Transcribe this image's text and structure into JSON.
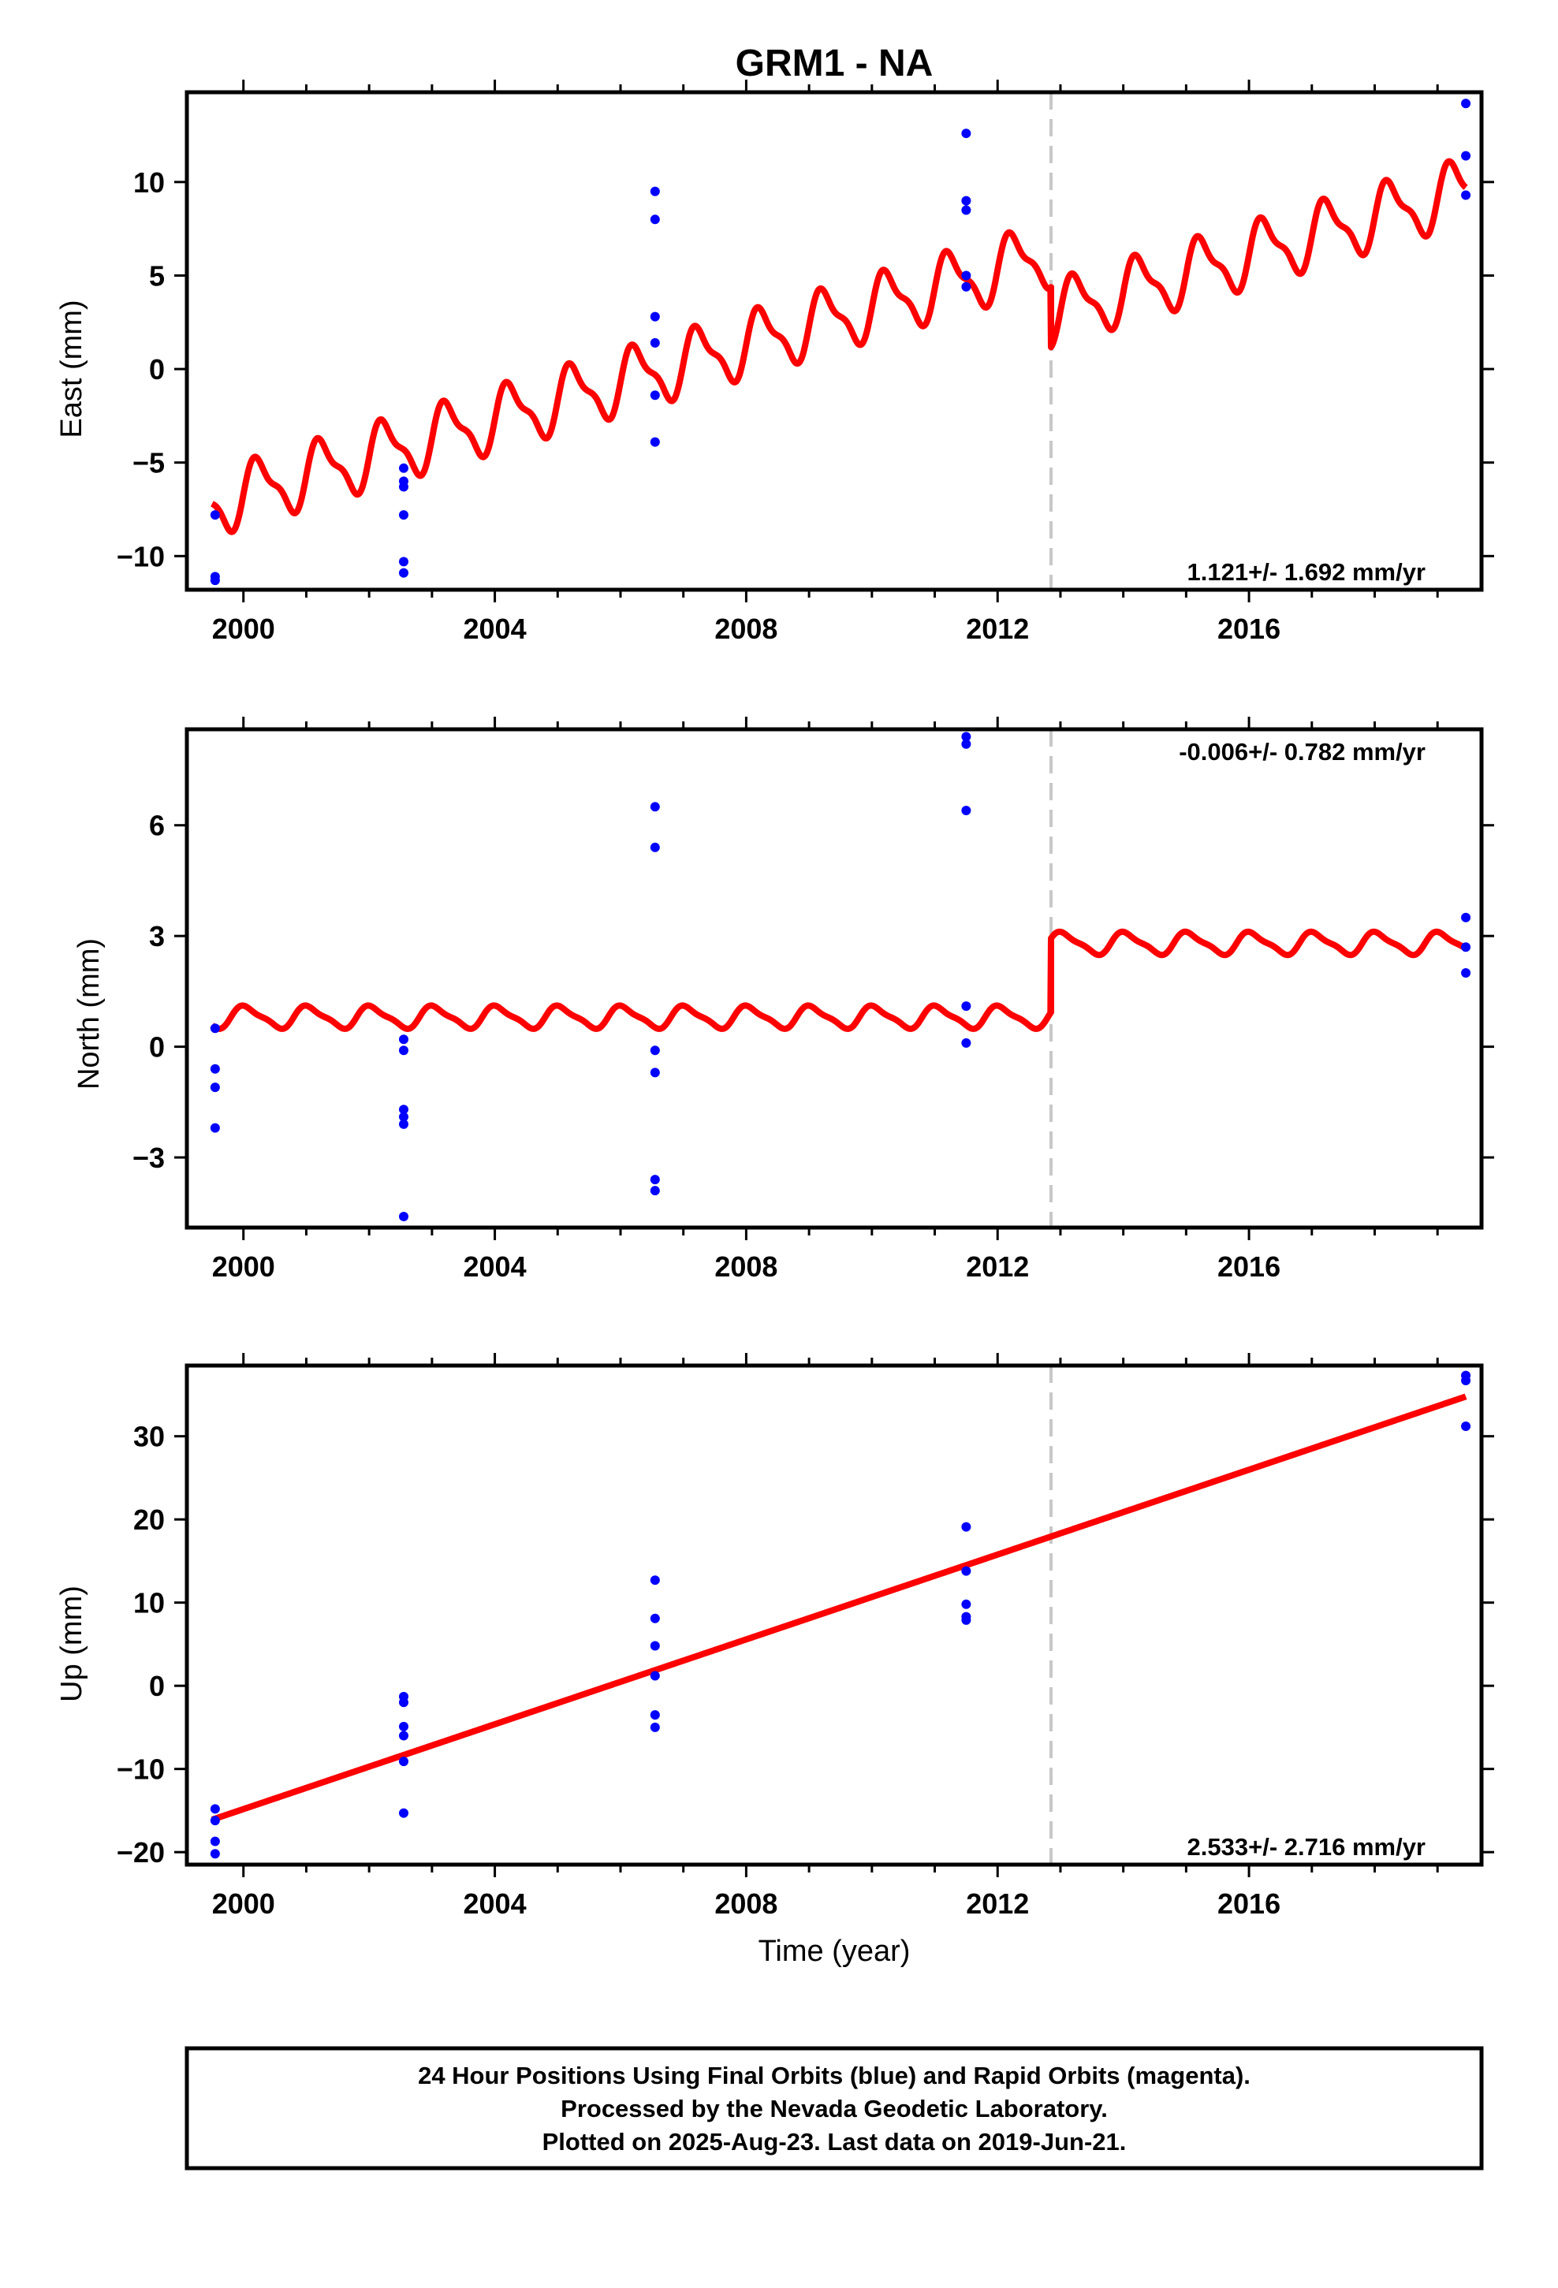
{
  "title": "GRM1 - NA",
  "footer": {
    "lines": [
      "24 Hour Positions Using Final Orbits (blue) and Rapid Orbits (magenta).",
      "Processed by the Nevada Geodetic Laboratory.",
      "Plotted on 2025-Aug-23. Last data on 2019-Jun-21."
    ]
  },
  "colors": {
    "data_points": "#0000ff",
    "model_line": "#ff0000",
    "step_marker": "#c8c8c8",
    "frame": "#000000"
  },
  "chart_data": [
    {
      "type": "scatter",
      "name": "east",
      "ylabel": "East (mm)",
      "xlabel": "",
      "xlim": [
        1999.1,
        2019.7
      ],
      "ylim": [
        -11.8,
        14.8
      ],
      "xticks": [
        2000,
        2004,
        2008,
        2012,
        2016
      ],
      "xtick_labels": [
        "2000",
        "2004",
        "2008",
        "2012",
        "2016"
      ],
      "yticks": [
        -10,
        -5,
        0,
        5,
        10
      ],
      "ytick_labels": [
        "−10",
        "−5",
        "0",
        "5",
        "10"
      ],
      "grid": false,
      "rate_label": "1.121+/- 1.692 mm/yr",
      "rate_position": "bottom-right",
      "step_epoch": 2012.85,
      "points": [
        [
          1999.55,
          -7.8
        ],
        [
          1999.55,
          -11.1
        ],
        [
          1999.55,
          -11.3
        ],
        [
          2002.55,
          -5.3
        ],
        [
          2002.55,
          -6.0
        ],
        [
          2002.55,
          -6.3
        ],
        [
          2002.55,
          -7.8
        ],
        [
          2002.55,
          -10.3
        ],
        [
          2002.55,
          -10.9
        ],
        [
          2006.55,
          9.5
        ],
        [
          2006.55,
          8.0
        ],
        [
          2006.55,
          2.8
        ],
        [
          2006.55,
          1.4
        ],
        [
          2006.55,
          -1.4
        ],
        [
          2006.55,
          -3.9
        ],
        [
          2011.5,
          12.6
        ],
        [
          2011.5,
          9.0
        ],
        [
          2011.5,
          8.5
        ],
        [
          2011.5,
          5.0
        ],
        [
          2011.5,
          4.4
        ],
        [
          2019.45,
          14.2
        ],
        [
          2019.45,
          11.4
        ],
        [
          2019.45,
          9.3
        ]
      ],
      "model": {
        "t0": 1999.5,
        "t1": 2019.45,
        "offset_before": -7.2,
        "slope": 1.0,
        "step": -3.2,
        "annual_amp": 1.55,
        "annual_phase": 0.0,
        "semiannual_amp": 0.55,
        "semiannual_phase": 0.5
      }
    },
    {
      "type": "scatter",
      "name": "north",
      "ylabel": "North (mm)",
      "xlabel": "",
      "xlim": [
        1999.1,
        2019.7
      ],
      "ylim": [
        -4.9,
        8.6
      ],
      "xticks": [
        2000,
        2004,
        2008,
        2012,
        2016
      ],
      "xtick_labels": [
        "2000",
        "2004",
        "2008",
        "2012",
        "2016"
      ],
      "yticks": [
        -3,
        0,
        3,
        6
      ],
      "ytick_labels": [
        "−3",
        "0",
        "3",
        "6"
      ],
      "grid": false,
      "rate_label": "-0.006+/- 0.782 mm/yr",
      "rate_position": "top-right",
      "step_epoch": 2012.85,
      "points": [
        [
          1999.55,
          0.5
        ],
        [
          1999.55,
          -0.6
        ],
        [
          1999.55,
          -1.1
        ],
        [
          1999.55,
          -2.2
        ],
        [
          2002.55,
          0.2
        ],
        [
          2002.55,
          -0.1
        ],
        [
          2002.55,
          -1.7
        ],
        [
          2002.55,
          -1.9
        ],
        [
          2002.55,
          -2.1
        ],
        [
          2002.55,
          -4.6
        ],
        [
          2006.55,
          6.5
        ],
        [
          2006.55,
          5.4
        ],
        [
          2006.55,
          -0.1
        ],
        [
          2006.55,
          -0.7
        ],
        [
          2006.55,
          -3.6
        ],
        [
          2006.55,
          -3.9
        ],
        [
          2011.5,
          8.4
        ],
        [
          2011.5,
          8.2
        ],
        [
          2011.5,
          6.4
        ],
        [
          2011.5,
          1.1
        ],
        [
          2011.5,
          0.1
        ],
        [
          2019.45,
          3.5
        ],
        [
          2019.45,
          2.7
        ],
        [
          2019.45,
          2.0
        ]
      ],
      "model": {
        "t0": 1999.5,
        "t1": 2019.45,
        "offset_before": 0.8,
        "slope": 0.0,
        "step": 2.0,
        "annual_amp": 0.28,
        "annual_phase": 0.2,
        "semiannual_amp": 0.08,
        "semiannual_phase": 0.7
      }
    },
    {
      "type": "scatter",
      "name": "up",
      "ylabel": "Up (mm)",
      "xlabel": "Time (year)",
      "xlim": [
        1999.1,
        2019.7
      ],
      "ylim": [
        -21.5,
        38.5
      ],
      "xticks": [
        2000,
        2004,
        2008,
        2012,
        2016
      ],
      "xtick_labels": [
        "2000",
        "2004",
        "2008",
        "2012",
        "2016"
      ],
      "yticks": [
        -20,
        -10,
        0,
        10,
        20,
        30
      ],
      "ytick_labels": [
        "−20",
        "−10",
        "0",
        "10",
        "20",
        "30"
      ],
      "grid": false,
      "rate_label": "2.533+/- 2.716 mm/yr",
      "rate_position": "bottom-right",
      "step_epoch": 2012.85,
      "points": [
        [
          1999.55,
          -14.8
        ],
        [
          1999.55,
          -16.2
        ],
        [
          1999.55,
          -18.7
        ],
        [
          1999.55,
          -20.2
        ],
        [
          2002.55,
          -1.3
        ],
        [
          2002.55,
          -2.0
        ],
        [
          2002.55,
          -4.9
        ],
        [
          2002.55,
          -6.0
        ],
        [
          2002.55,
          -9.1
        ],
        [
          2002.55,
          -15.3
        ],
        [
          2006.55,
          12.7
        ],
        [
          2006.55,
          8.1
        ],
        [
          2006.55,
          4.8
        ],
        [
          2006.55,
          1.2
        ],
        [
          2006.55,
          -3.5
        ],
        [
          2006.55,
          -5.0
        ],
        [
          2011.5,
          19.1
        ],
        [
          2011.5,
          13.8
        ],
        [
          2011.5,
          9.8
        ],
        [
          2011.5,
          8.3
        ],
        [
          2011.5,
          7.9
        ],
        [
          2019.45,
          37.3
        ],
        [
          2019.45,
          36.7
        ],
        [
          2019.45,
          31.2
        ]
      ],
      "model": {
        "t0": 1999.5,
        "t1": 2019.45,
        "offset_before": -16.1,
        "slope": 2.55,
        "step": 0.0,
        "annual_amp": 0.0,
        "annual_phase": 0.0,
        "semiannual_amp": 0.0,
        "semiannual_phase": 0.0
      }
    }
  ]
}
